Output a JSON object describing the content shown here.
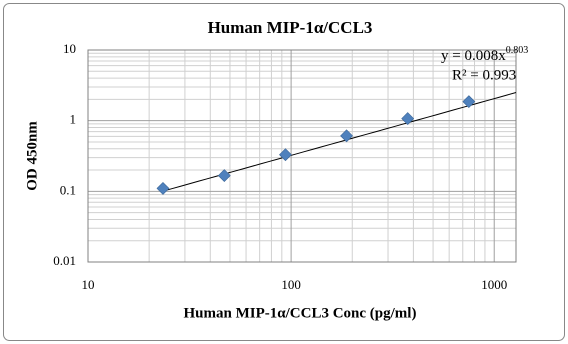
{
  "chart_data": {
    "type": "scatter",
    "title": "Human MIP-1α/CCL3",
    "x_label": "Human MIP-1α/CCL3 Conc (pg/ml)",
    "y_label": "OD 450nm",
    "series": [
      {
        "name": "Human MIP-1α/CCL3",
        "color": "#4f81bd",
        "x": [
          23.4,
          46.9,
          93.8,
          187.5,
          375,
          750
        ],
        "values": [
          0.11,
          0.167,
          0.33,
          0.61,
          1.07,
          1.86
        ]
      }
    ],
    "xlim": [
      10,
      1280
    ],
    "ylim": [
      0.01,
      10
    ],
    "xticks": [
      10,
      100,
      1000
    ],
    "yticks": [
      0.01,
      0.1,
      1,
      10
    ],
    "log_x": true,
    "log_y": true,
    "grid": true,
    "minor_grid": true,
    "trendline": {
      "type": "power",
      "coefficient": 0.008,
      "exponent": 0.803,
      "color": "#000000",
      "equation": "y = 0.008x",
      "r_squared_label": "R² = 0.993"
    }
  }
}
